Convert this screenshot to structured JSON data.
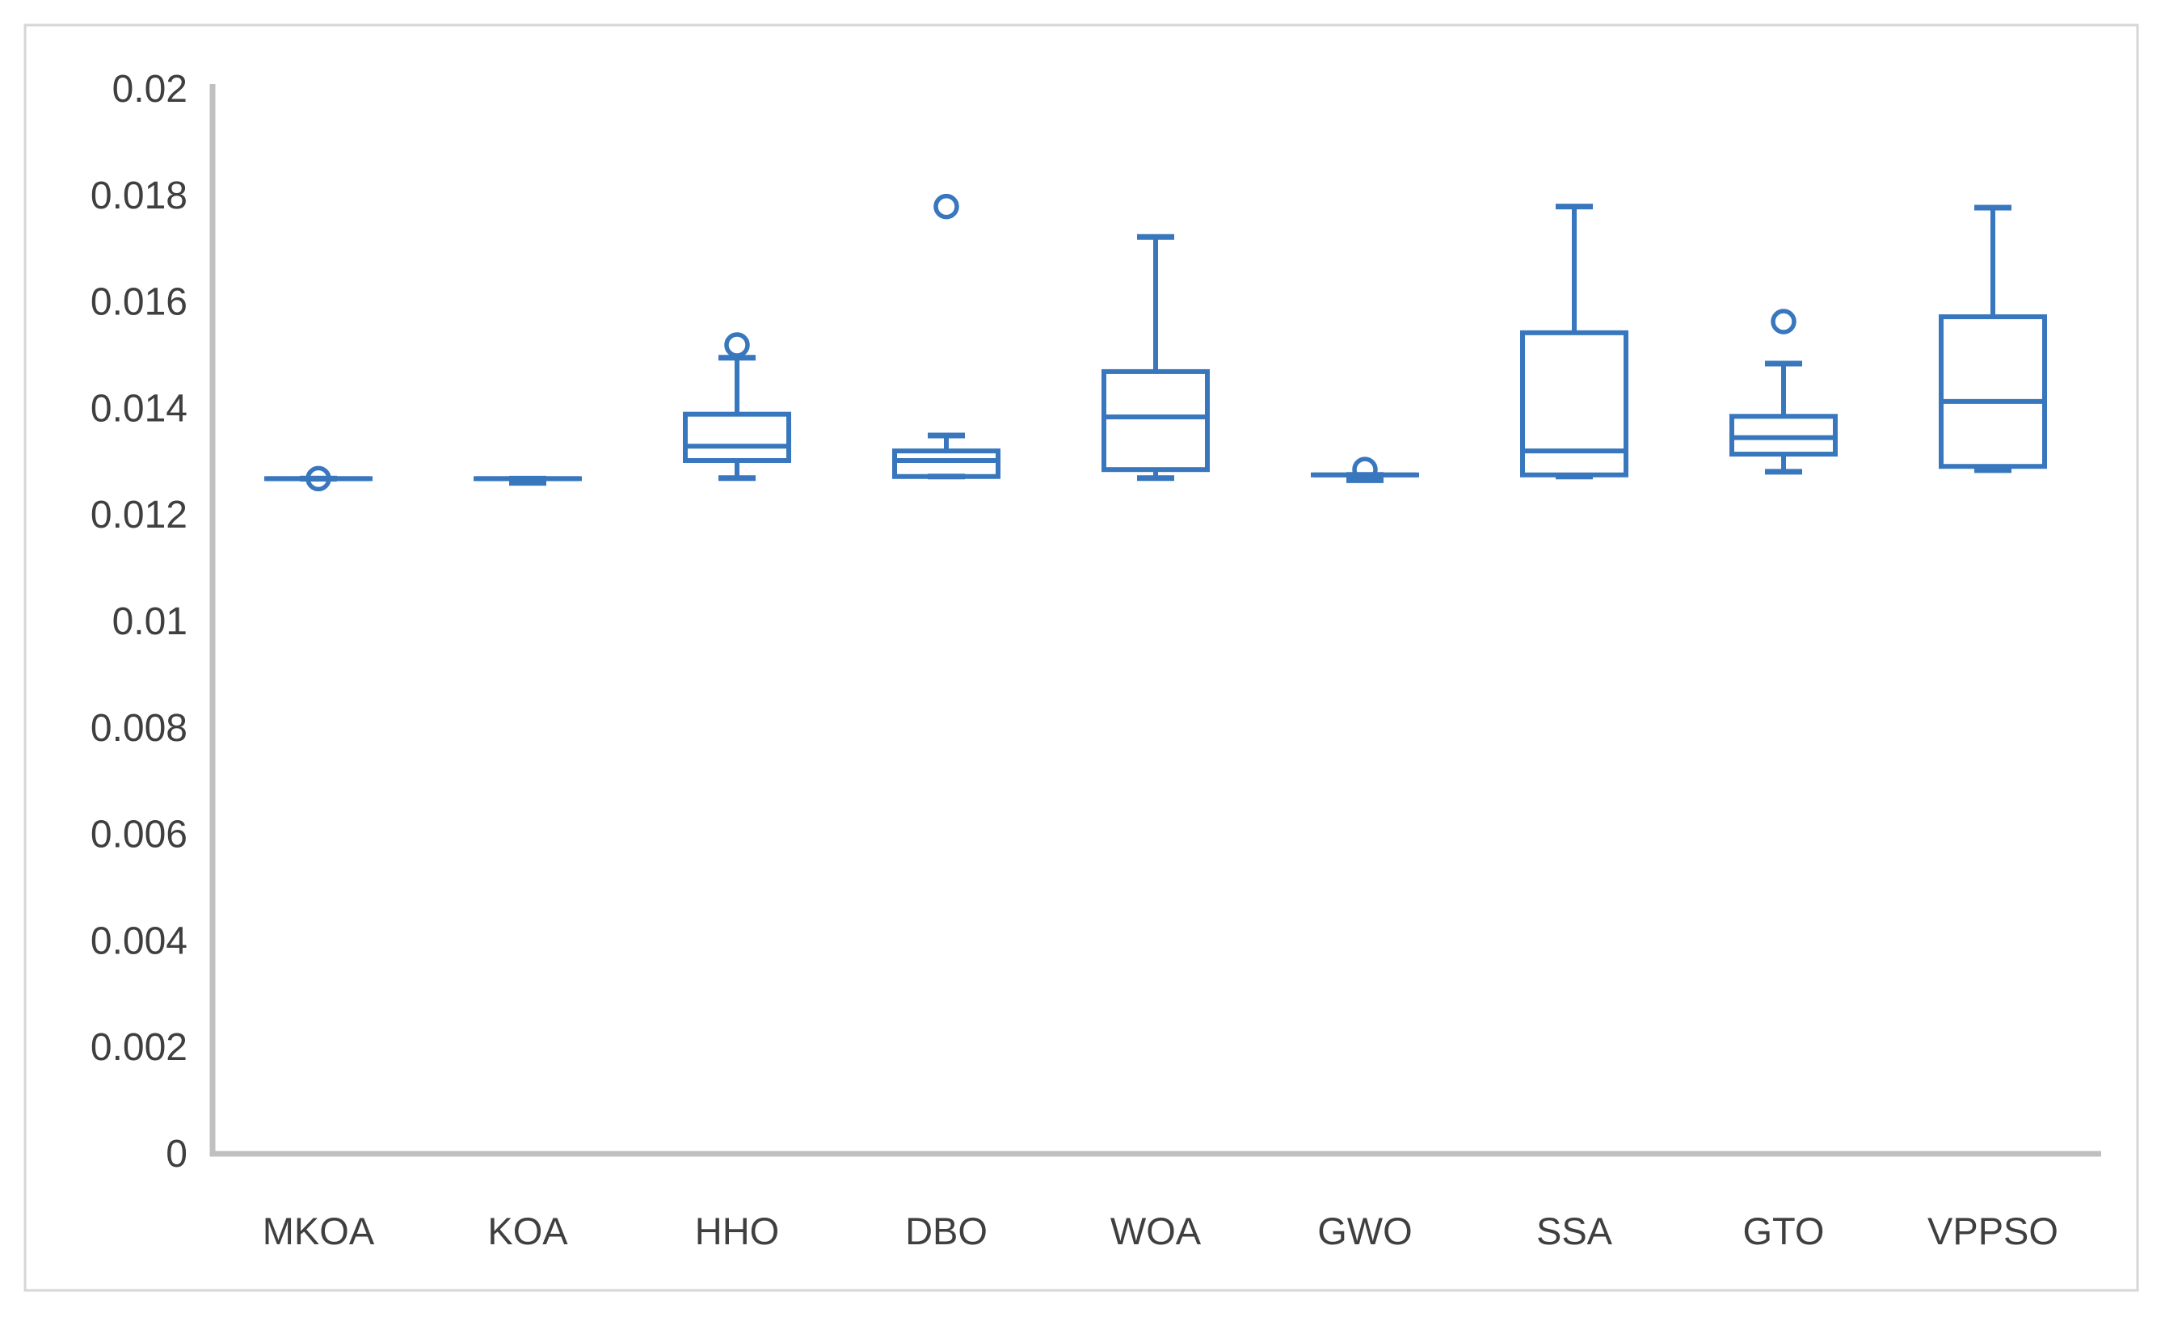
{
  "chart_data": {
    "type": "box",
    "title": "",
    "xlabel": "",
    "ylabel": "",
    "categories": [
      "MKOA",
      "KOA",
      "HHO",
      "DBO",
      "WOA",
      "GWO",
      "SSA",
      "GTO",
      "VPPSO"
    ],
    "series": [
      {
        "name": "MKOA",
        "min": 0.01268,
        "q1": 0.01268,
        "median": 0.01268,
        "q3": 0.01268,
        "max": 0.01268,
        "outliers": [
          0.01268
        ]
      },
      {
        "name": "KOA",
        "min": 0.0126,
        "q1": 0.01268,
        "median": 0.01268,
        "q3": 0.01268,
        "max": 0.01268,
        "outliers": []
      },
      {
        "name": "HHO",
        "min": 0.01269,
        "q1": 0.01302,
        "median": 0.01329,
        "q3": 0.01389,
        "max": 0.01495,
        "outliers": [
          0.01519
        ]
      },
      {
        "name": "DBO",
        "min": 0.01272,
        "q1": 0.01272,
        "median": 0.01302,
        "q3": 0.0132,
        "max": 0.01349,
        "outliers": [
          0.01779
        ]
      },
      {
        "name": "WOA",
        "min": 0.01269,
        "q1": 0.01285,
        "median": 0.01384,
        "q3": 0.01469,
        "max": 0.01722,
        "outliers": []
      },
      {
        "name": "GWO",
        "min": 0.01265,
        "q1": 0.01275,
        "median": 0.01275,
        "q3": 0.01275,
        "max": 0.01275,
        "outliers": [
          0.01285
        ]
      },
      {
        "name": "SSA",
        "min": 0.01272,
        "q1": 0.01275,
        "median": 0.0132,
        "q3": 0.01542,
        "max": 0.01779,
        "outliers": []
      },
      {
        "name": "GTO",
        "min": 0.01281,
        "q1": 0.01314,
        "median": 0.01345,
        "q3": 0.01385,
        "max": 0.01484,
        "outliers": [
          0.01563
        ]
      },
      {
        "name": "VPPSO",
        "min": 0.01284,
        "q1": 0.01291,
        "median": 0.01413,
        "q3": 0.01572,
        "max": 0.01777,
        "outliers": []
      }
    ],
    "ylim": [
      0,
      0.02
    ],
    "y_tick_labels": [
      "0.02",
      "0.018",
      "0.016",
      "0.014",
      "0.012",
      "0.01",
      "0.008",
      "0.006",
      "0.004",
      "0.002",
      "0"
    ],
    "y_tick_values": [
      0.02,
      0.018,
      0.016,
      0.014,
      0.012,
      0.01,
      0.008,
      0.006,
      0.004,
      0.002,
      0
    ],
    "grid": "off",
    "legend": "none",
    "colors": {
      "box_stroke": "#3877BD",
      "axis_line": "#C0C0C0",
      "tick_text": "#3F3F3F",
      "figure_border": "#D6D6D6",
      "background": "#FFFFFF"
    }
  }
}
